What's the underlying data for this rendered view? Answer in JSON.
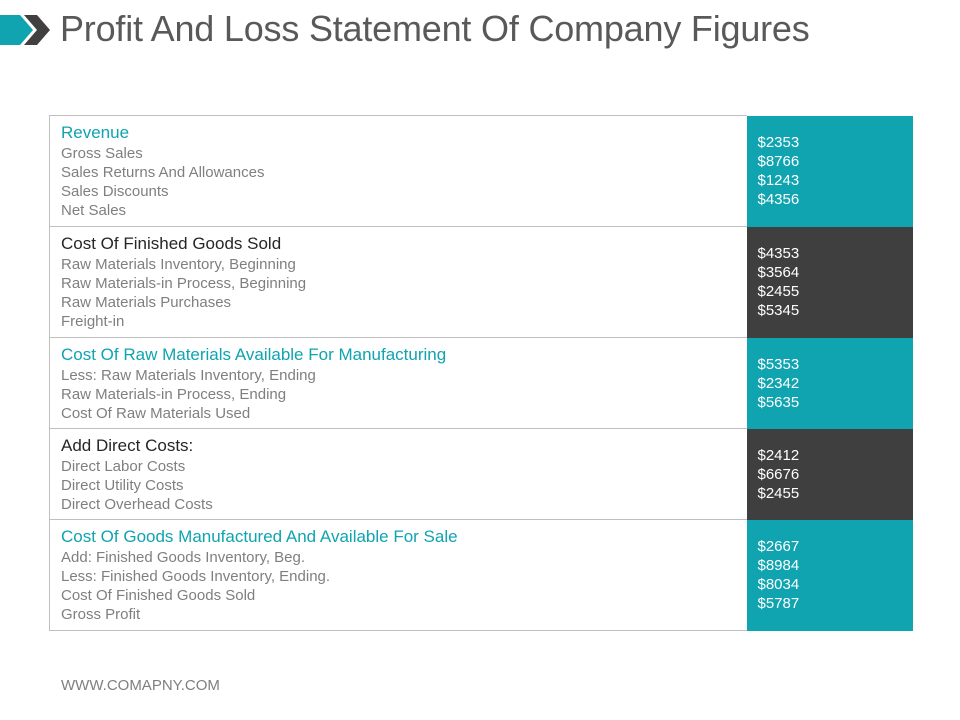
{
  "title": "Profit And Loss Statement Of Company Figures",
  "colors": {
    "accent": "#0fa4b0",
    "dark": "#3f3f3f",
    "text": "#595959"
  },
  "sections": [
    {
      "title": "Revenue",
      "style": "teal",
      "items": [
        "Gross Sales",
        "Sales Returns And Allowances",
        "Sales Discounts",
        "Net Sales"
      ],
      "values": [
        "$2353",
        "$8766",
        "$1243",
        "$4356"
      ]
    },
    {
      "title": "Cost Of Finished Goods Sold",
      "style": "dark",
      "items": [
        "Raw Materials Inventory, Beginning",
        "Raw Materials-in Process, Beginning",
        "Raw Materials Purchases",
        "Freight-in"
      ],
      "values": [
        "$4353",
        "$3564",
        "$2455",
        "$5345"
      ]
    },
    {
      "title": "Cost Of Raw Materials Available For Manufacturing",
      "style": "teal",
      "items": [
        "Less: Raw Materials Inventory, Ending",
        "Raw Materials-in Process, Ending",
        "Cost Of Raw Materials Used"
      ],
      "values": [
        "$5353",
        "$2342",
        "$5635"
      ]
    },
    {
      "title": "Add Direct Costs:",
      "style": "dark",
      "items": [
        "Direct Labor Costs",
        "Direct Utility Costs",
        "Direct Overhead Costs"
      ],
      "values": [
        "$2412",
        "$6676",
        "$2455"
      ]
    },
    {
      "title": "Cost Of Goods Manufactured And Available For Sale",
      "style": "teal",
      "items": [
        "Add: Finished Goods Inventory, Beg.",
        "Less: Finished Goods Inventory, Ending.",
        "Cost Of Finished Goods Sold",
        "Gross Profit"
      ],
      "values": [
        "$2667",
        "$8984",
        "$8034",
        "$5787"
      ]
    }
  ],
  "footer": "WWW.COMAPNY.COM"
}
